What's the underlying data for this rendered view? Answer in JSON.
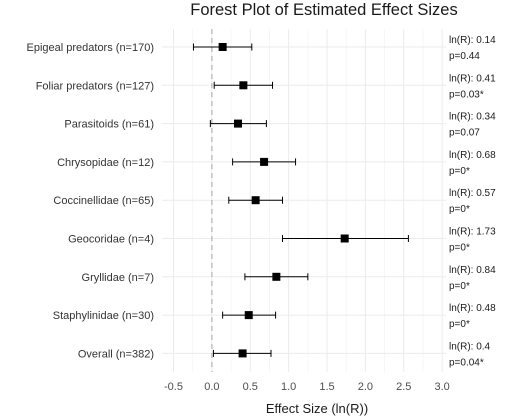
{
  "chart_data": {
    "type": "forest",
    "title": "Forest Plot of Estimated Effect Sizes",
    "xlabel": "Effect Size (ln(R))",
    "ylabel": "",
    "xlim": [
      -0.65,
      3.05
    ],
    "x_ticks": [
      -0.5,
      0.0,
      0.5,
      1.0,
      1.5,
      2.0,
      2.5,
      3.0
    ],
    "x_tick_labels": [
      "-0.5",
      "0.0",
      "0.5",
      "1.0",
      "1.5",
      "2.0",
      "2.5",
      "3.0"
    ],
    "reference_line": 0,
    "grid": true,
    "rows": [
      {
        "label": "Epigeal predators (n=170)",
        "estimate": 0.14,
        "lower": -0.24,
        "upper": 0.52,
        "annot_est": "ln(R): 0.14",
        "annot_p": "p=0.44"
      },
      {
        "label": "Foliar predators (n=127)",
        "estimate": 0.41,
        "lower": 0.03,
        "upper": 0.79,
        "annot_est": "ln(R): 0.41",
        "annot_p": "p=0.03*"
      },
      {
        "label": "Parasitoids (n=61)",
        "estimate": 0.34,
        "lower": -0.02,
        "upper": 0.71,
        "annot_est": "ln(R): 0.34",
        "annot_p": "p=0.07"
      },
      {
        "label": "Chrysopidae (n=12)",
        "estimate": 0.68,
        "lower": 0.27,
        "upper": 1.09,
        "annot_est": "ln(R): 0.68",
        "annot_p": "p=0*"
      },
      {
        "label": "Coccinellidae (n=65)",
        "estimate": 0.57,
        "lower": 0.22,
        "upper": 0.92,
        "annot_est": "ln(R): 0.57",
        "annot_p": "p=0*"
      },
      {
        "label": "Geocoridae (n=4)",
        "estimate": 1.73,
        "lower": 0.92,
        "upper": 2.56,
        "annot_est": "ln(R): 1.73",
        "annot_p": "p=0*"
      },
      {
        "label": "Gryllidae (n=7)",
        "estimate": 0.84,
        "lower": 0.43,
        "upper": 1.25,
        "annot_est": "ln(R): 0.84",
        "annot_p": "p=0*"
      },
      {
        "label": "Staphylinidae (n=30)",
        "estimate": 0.48,
        "lower": 0.14,
        "upper": 0.83,
        "annot_est": "ln(R): 0.48",
        "annot_p": "p=0*"
      },
      {
        "label": "Overall (n=382)",
        "estimate": 0.4,
        "lower": 0.02,
        "upper": 0.77,
        "annot_est": "ln(R): 0.4",
        "annot_p": "p=0.04*"
      }
    ],
    "colors": {
      "point": "#000000",
      "reference_line": "#b3b3b3",
      "grid": "#ebebeb"
    }
  }
}
